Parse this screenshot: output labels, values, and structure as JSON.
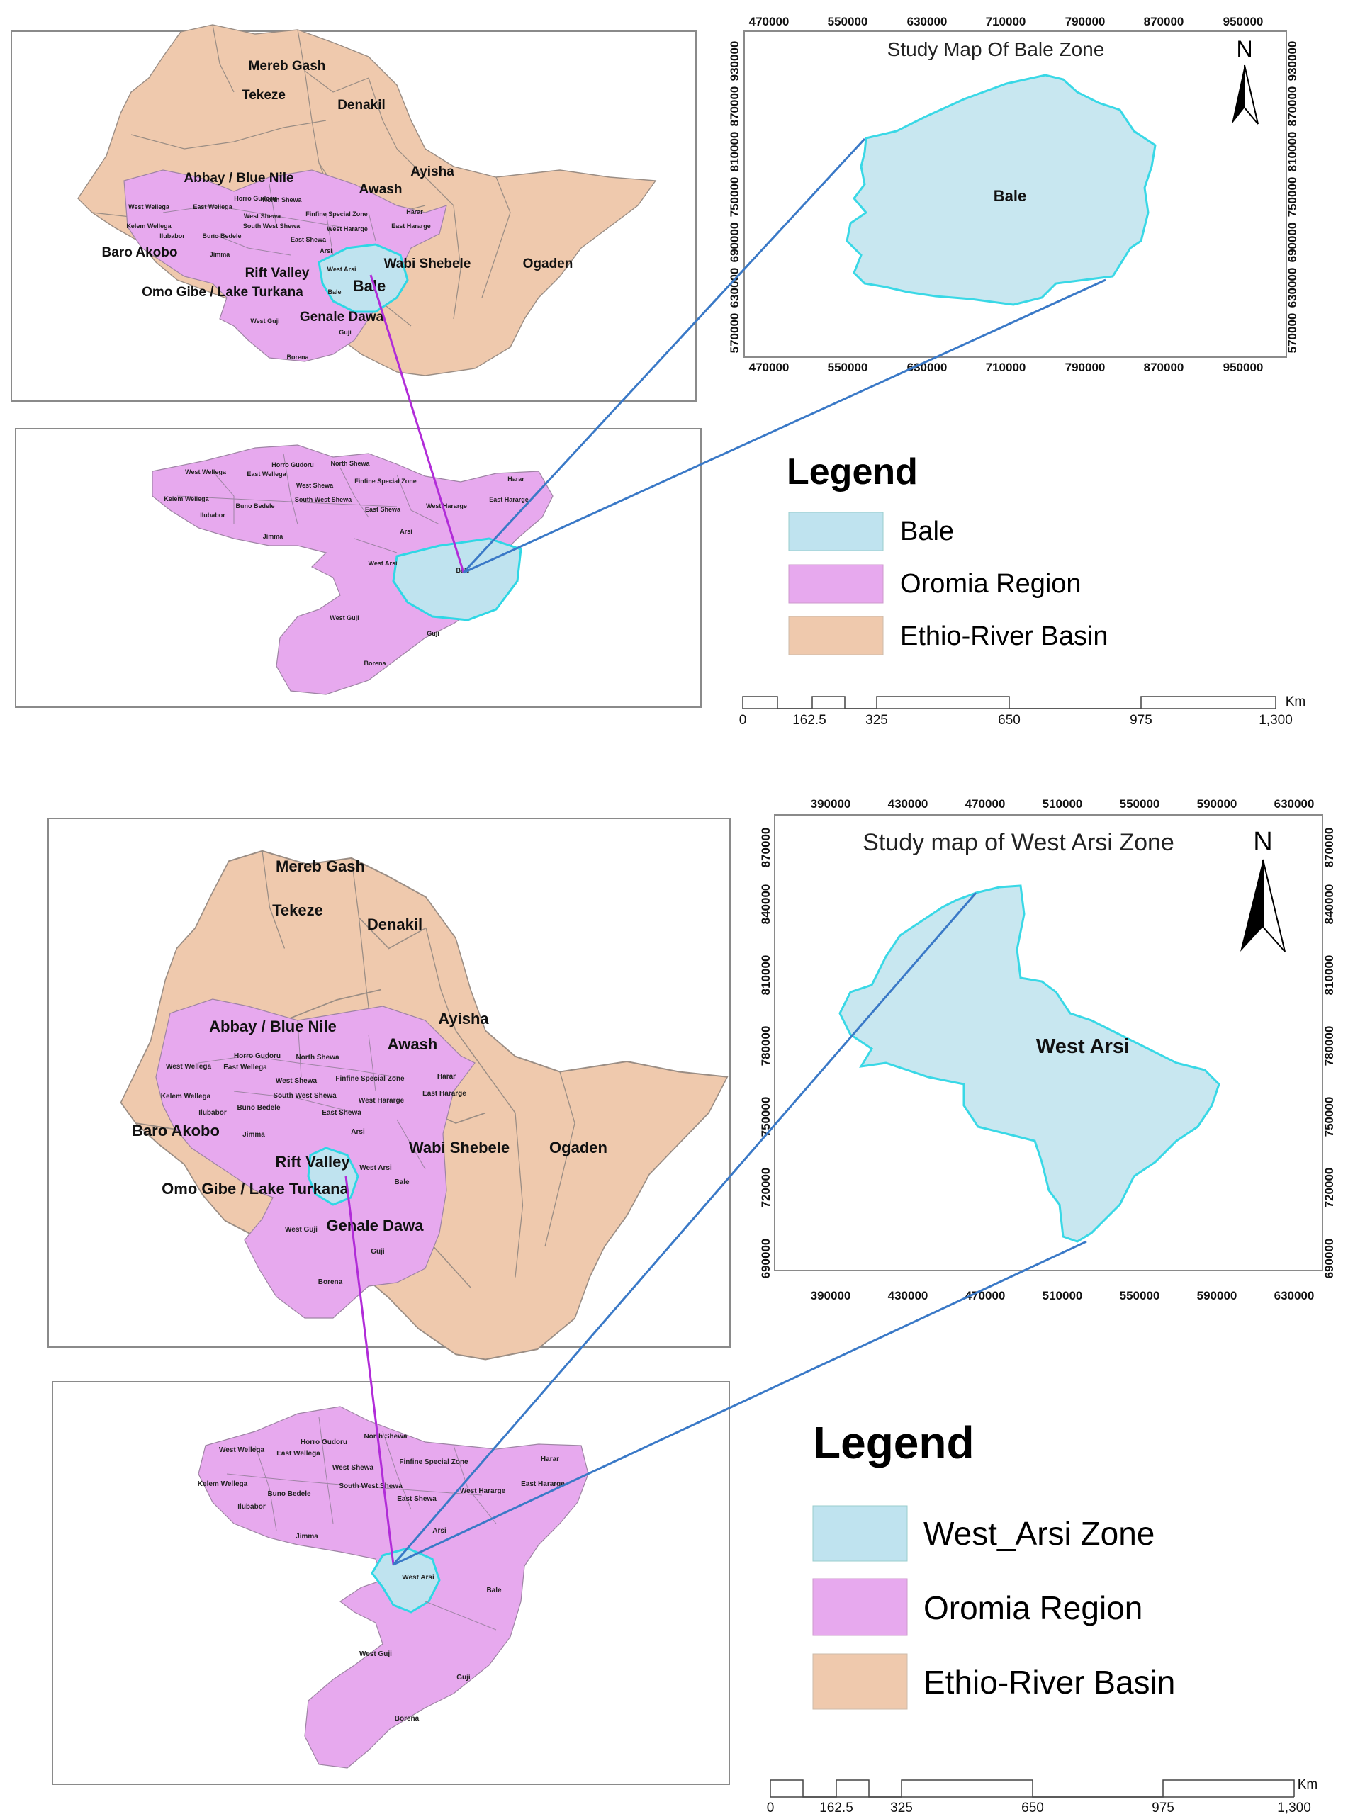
{
  "top_panel": {
    "basin_labels": [
      "Mereb Gash",
      "Tekeze",
      "Denakil",
      "Abbay / Blue Nile",
      "Ayisha",
      "Awash",
      "Baro Akobo",
      "Rift Valley",
      "Wabi Shebele",
      "Ogaden",
      "Omo Gibe / Lake Turkana",
      "Genale Dawa"
    ],
    "highlight_label": "Bale",
    "zone_labels_ethiopia": [
      "Horro Gudoru",
      "North Shewa",
      "West Wellega",
      "East Wellega",
      "West Shewa",
      "Finfine Special Zone",
      "Harar",
      "Kelem Wellega",
      "South West Shewa",
      "West Hararge",
      "East Hararge",
      "Ilubabor",
      "Buno Bedele",
      "East Shewa",
      "Jimma",
      "Arsi",
      "West Arsi",
      "Bale",
      "West Guji",
      "Guji",
      "Borena"
    ],
    "zone_labels_oromia": [
      "West Wellega",
      "Horro Gudoru",
      "North Shewa",
      "East Wellega",
      "West Shewa",
      "Finfine Special Zone",
      "Harar",
      "Kelem Wellega",
      "South West Shewa",
      "West Hararge",
      "East Hararge",
      "Buno Bedele",
      "East Shewa",
      "Ilubabor",
      "Jimma",
      "Arsi",
      "West Arsi",
      "Bale",
      "West Guji",
      "Guji",
      "Borena"
    ],
    "study_map": {
      "title": "Study Map Of Bale Zone",
      "zone_label": "Bale",
      "x_ticks": [
        "470000",
        "550000",
        "630000",
        "710000",
        "790000",
        "870000",
        "950000"
      ],
      "y_ticks": [
        "570000",
        "630000",
        "690000",
        "750000",
        "810000",
        "870000",
        "930000"
      ],
      "north": "N"
    },
    "legend": {
      "title": "Legend",
      "items": [
        {
          "label": "Bale",
          "color": "#bfe3ef"
        },
        {
          "label": "Oromia Region",
          "color": "#e7a9ee"
        },
        {
          "label": "Ethio-River Basin",
          "color": "#efc9ad"
        }
      ]
    },
    "scale": {
      "unit": "Km",
      "ticks": [
        "0",
        "162.5",
        "325",
        "650",
        "975",
        "1,300"
      ]
    }
  },
  "bottom_panel": {
    "basin_labels": [
      "Mereb Gash",
      "Tekeze",
      "Denakil",
      "Abbay / Blue Nile",
      "Ayisha",
      "Awash",
      "Baro Akobo",
      "Rift Valley",
      "Wabi Shebele",
      "Ogaden",
      "Omo Gibe / Lake Turkana",
      "Genale Dawa"
    ],
    "zone_labels_ethiopia": [
      "Horro Gudoru",
      "North Shewa",
      "West Wellega",
      "East Wellega",
      "West Shewa",
      "Finfine Special Zone",
      "Harar",
      "Kelem Wellega",
      "South West Shewa",
      "West Hararge",
      "East Hararge",
      "Ilubabor",
      "Buno Bedele",
      "East Shewa",
      "Jimma",
      "Arsi",
      "West Arsi",
      "Bale",
      "West Guji",
      "Guji",
      "Borena"
    ],
    "zone_labels_oromia": [
      "West Wellega",
      "Horro Gudoru",
      "North Shewa",
      "East Wellega",
      "West Shewa",
      "Finfine Special Zone",
      "Harar",
      "Kelem Wellega",
      "South West Shewa",
      "West Hararge",
      "East Hararge",
      "Buno Bedele",
      "East Shewa",
      "Ilubabor",
      "Jimma",
      "Arsi",
      "West Arsi",
      "Bale",
      "West Guji",
      "Guji",
      "Borena"
    ],
    "study_map": {
      "title": "Study map of West Arsi Zone",
      "zone_label": "West Arsi",
      "x_ticks": [
        "390000",
        "430000",
        "470000",
        "510000",
        "550000",
        "590000",
        "630000"
      ],
      "y_ticks": [
        "690000",
        "720000",
        "750000",
        "780000",
        "810000",
        "840000",
        "870000"
      ],
      "north": "N"
    },
    "legend": {
      "title": "Legend",
      "items": [
        {
          "label": "West_Arsi Zone",
          "color": "#bfe3ef"
        },
        {
          "label": "Oromia Region",
          "color": "#e7a9ee"
        },
        {
          "label": "Ethio-River Basin",
          "color": "#efc9ad"
        }
      ]
    },
    "scale": {
      "unit": "Km",
      "ticks": [
        "0",
        "162.5",
        "325",
        "650",
        "975",
        "1,300"
      ]
    }
  }
}
